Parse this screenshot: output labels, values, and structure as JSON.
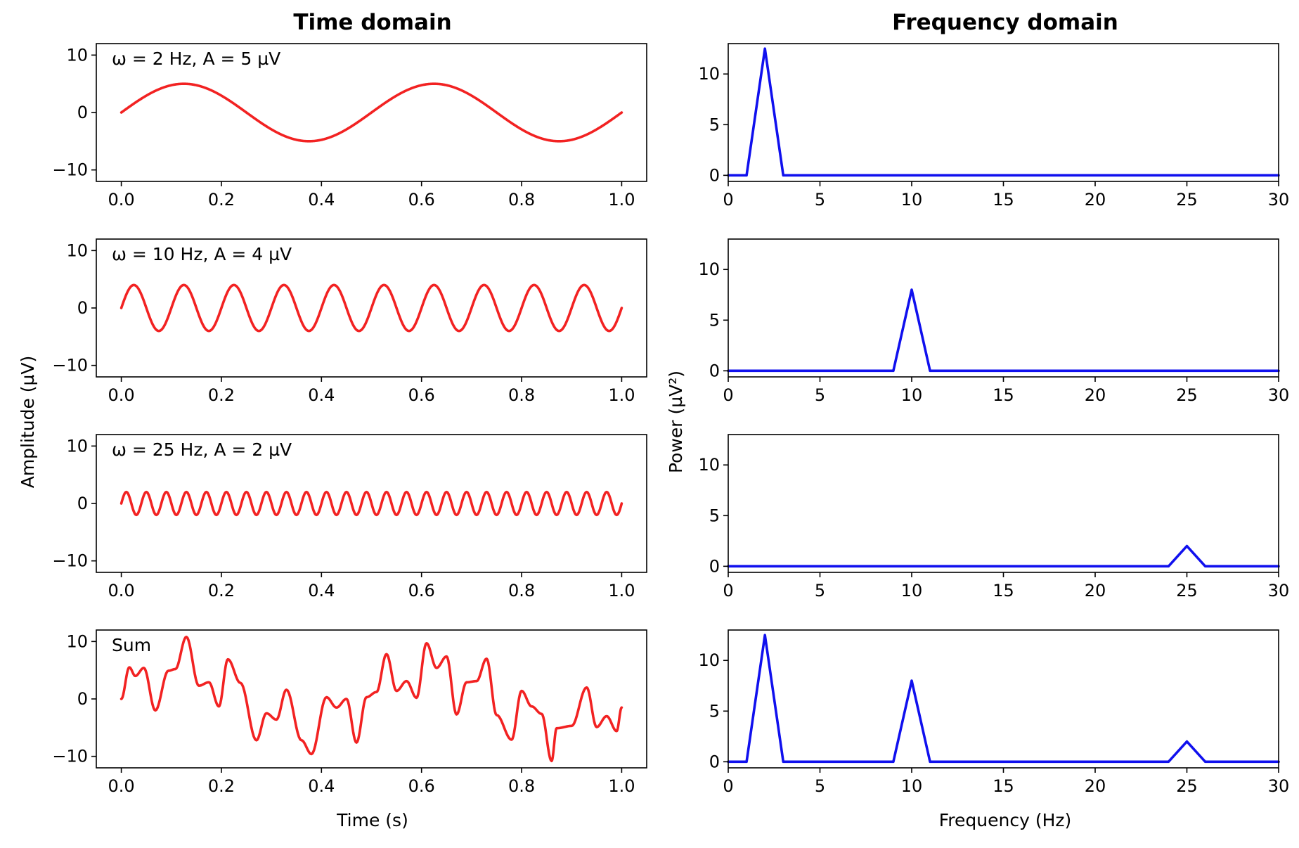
{
  "figure": {
    "left_title": "Time domain",
    "right_title": "Frequency domain",
    "left_ylabel": "Amplitude (µV)",
    "right_ylabel": "Power (µV²)",
    "left_xlabel": "Time (s)",
    "right_xlabel": "Frequency (Hz)"
  },
  "colors": {
    "time_series": "#f22222",
    "power_series": "#1010ee"
  },
  "chart_data": [
    {
      "type": "line",
      "panel": "time-1",
      "annotation": "ω = 2 Hz, A = 5 µV",
      "wave": {
        "freq_hz": 2,
        "amplitude_uv": 5
      },
      "xlim": [
        -0.05,
        1.05
      ],
      "ylim": [
        -12,
        12
      ],
      "xticks": [
        0.0,
        0.2,
        0.4,
        0.6,
        0.8,
        1.0
      ],
      "xtick_labels": [
        "0.0",
        "0.2",
        "0.4",
        "0.6",
        "0.8",
        "1.0"
      ],
      "yticks": [
        10,
        0,
        -10
      ],
      "ytick_labels": [
        "10",
        "0",
        "−10"
      ]
    },
    {
      "type": "line",
      "panel": "time-2",
      "annotation": "ω = 10 Hz, A = 4 µV",
      "wave": {
        "freq_hz": 10,
        "amplitude_uv": 4
      },
      "xlim": [
        -0.05,
        1.05
      ],
      "ylim": [
        -12,
        12
      ],
      "xticks": [
        0.0,
        0.2,
        0.4,
        0.6,
        0.8,
        1.0
      ],
      "xtick_labels": [
        "0.0",
        "0.2",
        "0.4",
        "0.6",
        "0.8",
        "1.0"
      ],
      "yticks": [
        10,
        0,
        -10
      ],
      "ytick_labels": [
        "10",
        "0",
        "−10"
      ]
    },
    {
      "type": "line",
      "panel": "time-3",
      "annotation": "ω = 25 Hz, A = 2 µV",
      "wave": {
        "freq_hz": 25,
        "amplitude_uv": 2
      },
      "xlim": [
        -0.05,
        1.05
      ],
      "ylim": [
        -12,
        12
      ],
      "xticks": [
        0.0,
        0.2,
        0.4,
        0.6,
        0.8,
        1.0
      ],
      "xtick_labels": [
        "0.0",
        "0.2",
        "0.4",
        "0.6",
        "0.8",
        "1.0"
      ],
      "yticks": [
        10,
        0,
        -10
      ],
      "ytick_labels": [
        "10",
        "0",
        "−10"
      ]
    },
    {
      "type": "line",
      "panel": "time-sum",
      "annotation": "Sum",
      "x": [
        0.0,
        0.016,
        0.028,
        0.045,
        0.068,
        0.094,
        0.108,
        0.13,
        0.155,
        0.175,
        0.195,
        0.213,
        0.238,
        0.27,
        0.29,
        0.31,
        0.33,
        0.36,
        0.38,
        0.41,
        0.43,
        0.45,
        0.47,
        0.49,
        0.51,
        0.53,
        0.55,
        0.57,
        0.59,
        0.61,
        0.63,
        0.65,
        0.67,
        0.69,
        0.71,
        0.73,
        0.75,
        0.78,
        0.8,
        0.82,
        0.84,
        0.86,
        0.87,
        0.9,
        0.93,
        0.95,
        0.97,
        0.99,
        1.0
      ],
      "y": [
        0.0,
        5.5,
        4.0,
        5.4,
        -2.0,
        4.9,
        5.2,
        10.8,
        2.3,
        2.9,
        -1.3,
        6.9,
        2.8,
        -7.2,
        -2.5,
        -3.6,
        1.6,
        -7.2,
        -9.6,
        0.3,
        -1.5,
        0.0,
        -7.6,
        0.3,
        1.2,
        7.8,
        1.4,
        3.1,
        0.2,
        9.7,
        5.4,
        7.4,
        -2.7,
        2.9,
        3.1,
        7.0,
        -2.8,
        -7.1,
        1.4,
        -1.3,
        -2.6,
        -10.8,
        -5.1,
        -4.7,
        2.0,
        -4.9,
        -3.0,
        -5.6,
        -1.5
      ],
      "xlim": [
        -0.05,
        1.05
      ],
      "ylim": [
        -12,
        12
      ],
      "xticks": [
        0.0,
        0.2,
        0.4,
        0.6,
        0.8,
        1.0
      ],
      "xtick_labels": [
        "0.0",
        "0.2",
        "0.4",
        "0.6",
        "0.8",
        "1.0"
      ],
      "yticks": [
        10,
        0,
        -10
      ],
      "ytick_labels": [
        "10",
        "0",
        "−10"
      ]
    },
    {
      "type": "line",
      "panel": "freq-1",
      "x": [
        0,
        1,
        2,
        3,
        30
      ],
      "y": [
        0,
        0,
        12.5,
        0,
        0
      ],
      "xlim": [
        0,
        30
      ],
      "ylim": [
        -0.6,
        13
      ],
      "xticks": [
        0,
        5,
        10,
        15,
        20,
        25,
        30
      ],
      "xtick_labels": [
        "0",
        "5",
        "10",
        "15",
        "20",
        "25",
        "30"
      ],
      "yticks": [
        10,
        5,
        0
      ],
      "ytick_labels": [
        "10",
        "5",
        "0"
      ]
    },
    {
      "type": "line",
      "panel": "freq-2",
      "x": [
        0,
        9,
        10,
        11,
        30
      ],
      "y": [
        0,
        0,
        8,
        0,
        0
      ],
      "xlim": [
        0,
        30
      ],
      "ylim": [
        -0.6,
        13
      ],
      "xticks": [
        0,
        5,
        10,
        15,
        20,
        25,
        30
      ],
      "xtick_labels": [
        "0",
        "5",
        "10",
        "15",
        "20",
        "25",
        "30"
      ],
      "yticks": [
        10,
        5,
        0
      ],
      "ytick_labels": [
        "10",
        "5",
        "0"
      ]
    },
    {
      "type": "line",
      "panel": "freq-3",
      "x": [
        0,
        24,
        25,
        26,
        30
      ],
      "y": [
        0,
        0,
        2,
        0,
        0
      ],
      "xlim": [
        0,
        30
      ],
      "ylim": [
        -0.6,
        13
      ],
      "xticks": [
        0,
        5,
        10,
        15,
        20,
        25,
        30
      ],
      "xtick_labels": [
        "0",
        "5",
        "10",
        "15",
        "20",
        "25",
        "30"
      ],
      "yticks": [
        10,
        5,
        0
      ],
      "ytick_labels": [
        "10",
        "5",
        "0"
      ]
    },
    {
      "type": "line",
      "panel": "freq-sum",
      "x": [
        0,
        1,
        2,
        3,
        9,
        10,
        11,
        24,
        25,
        26,
        30
      ],
      "y": [
        0,
        0,
        12.5,
        0,
        0,
        8,
        0,
        0,
        2,
        0,
        0
      ],
      "xlim": [
        0,
        30
      ],
      "ylim": [
        -0.6,
        13
      ],
      "xticks": [
        0,
        5,
        10,
        15,
        20,
        25,
        30
      ],
      "xtick_labels": [
        "0",
        "5",
        "10",
        "15",
        "20",
        "25",
        "30"
      ],
      "yticks": [
        10,
        5,
        0
      ],
      "ytick_labels": [
        "10",
        "5",
        "0"
      ]
    }
  ]
}
